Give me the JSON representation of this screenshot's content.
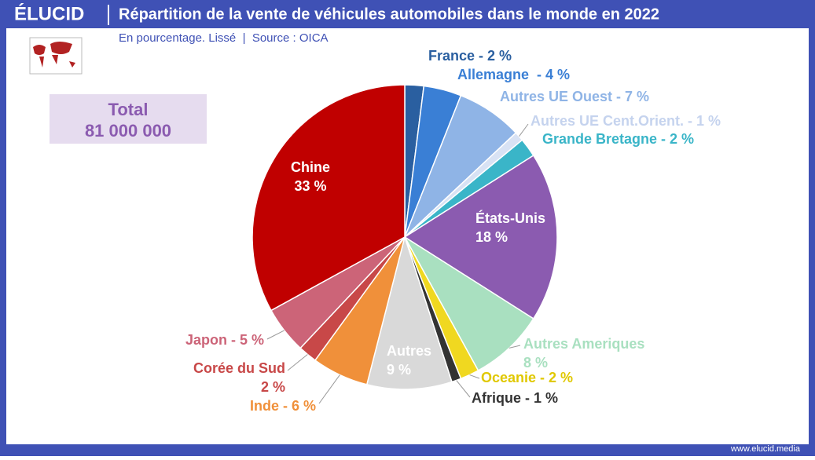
{
  "header": {
    "logo": "ÉLUCID",
    "subtitle": "En pourcentage. Lissé  |  Source : OICA"
  },
  "total": {
    "label": "Total",
    "text": "81 000 000"
  },
  "footer": "www.elucid.media",
  "chart_data": {
    "type": "pie",
    "title": "Répartition de la vente de véhicules automobiles dans le monde en 2022",
    "values": [
      2,
      4,
      7,
      1,
      2,
      18,
      8,
      2,
      1,
      9,
      6,
      2,
      5,
      33
    ],
    "value_labels": [
      [
        "France - 2 %"
      ],
      [
        "Allemagne  - 4 %"
      ],
      [
        "Autres UE Ouest - 7 %"
      ],
      [
        "Autres UE Cent.Orient. - 1 %"
      ],
      [
        "Grande Bretagne - 2 %"
      ],
      [
        "États-Unis",
        "18 %"
      ],
      [
        "Autres Ameriques",
        "8 %"
      ],
      [
        "Oceanie - 2 %"
      ],
      [
        "Afrique - 1 %"
      ],
      [
        "Autres",
        "9 %"
      ],
      [
        "Inde - 6 %"
      ],
      [
        "Corée du Sud",
        "2 %"
      ],
      [
        "Japon - 5 %"
      ],
      [
        "Chine",
        "33 %"
      ]
    ],
    "colors": [
      "#2a5fa0",
      "#3a7fd5",
      "#8fb4e6",
      "#d8e2f4",
      "#3ab5c8",
      "#8b5bb0",
      "#a9e0c0",
      "#f0d820",
      "#333333",
      "#d9d9d9",
      "#f0903a",
      "#c84848",
      "#cc6478",
      "#c00000"
    ]
  }
}
